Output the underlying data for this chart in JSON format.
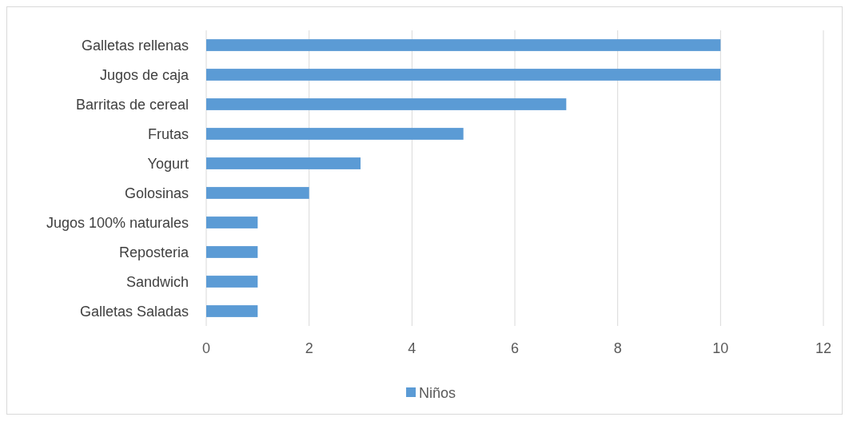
{
  "chart_data": {
    "type": "bar",
    "orientation": "horizontal",
    "categories": [
      "Galletas rellenas",
      "Jugos de caja",
      "Barritas de cereal",
      "Frutas",
      "Yogurt",
      "Golosinas",
      "Jugos 100% naturales",
      "Reposteria",
      "Sandwich",
      "Galletas Saladas"
    ],
    "series": [
      {
        "name": "Niños",
        "color": "#5b9bd5",
        "values": [
          10,
          10,
          7,
          5,
          3,
          2,
          1,
          1,
          1,
          1
        ]
      }
    ],
    "xlim": [
      0,
      12
    ],
    "xticks": [
      0,
      2,
      4,
      6,
      8,
      10,
      12
    ],
    "grid": "x",
    "legend": "bottom"
  }
}
